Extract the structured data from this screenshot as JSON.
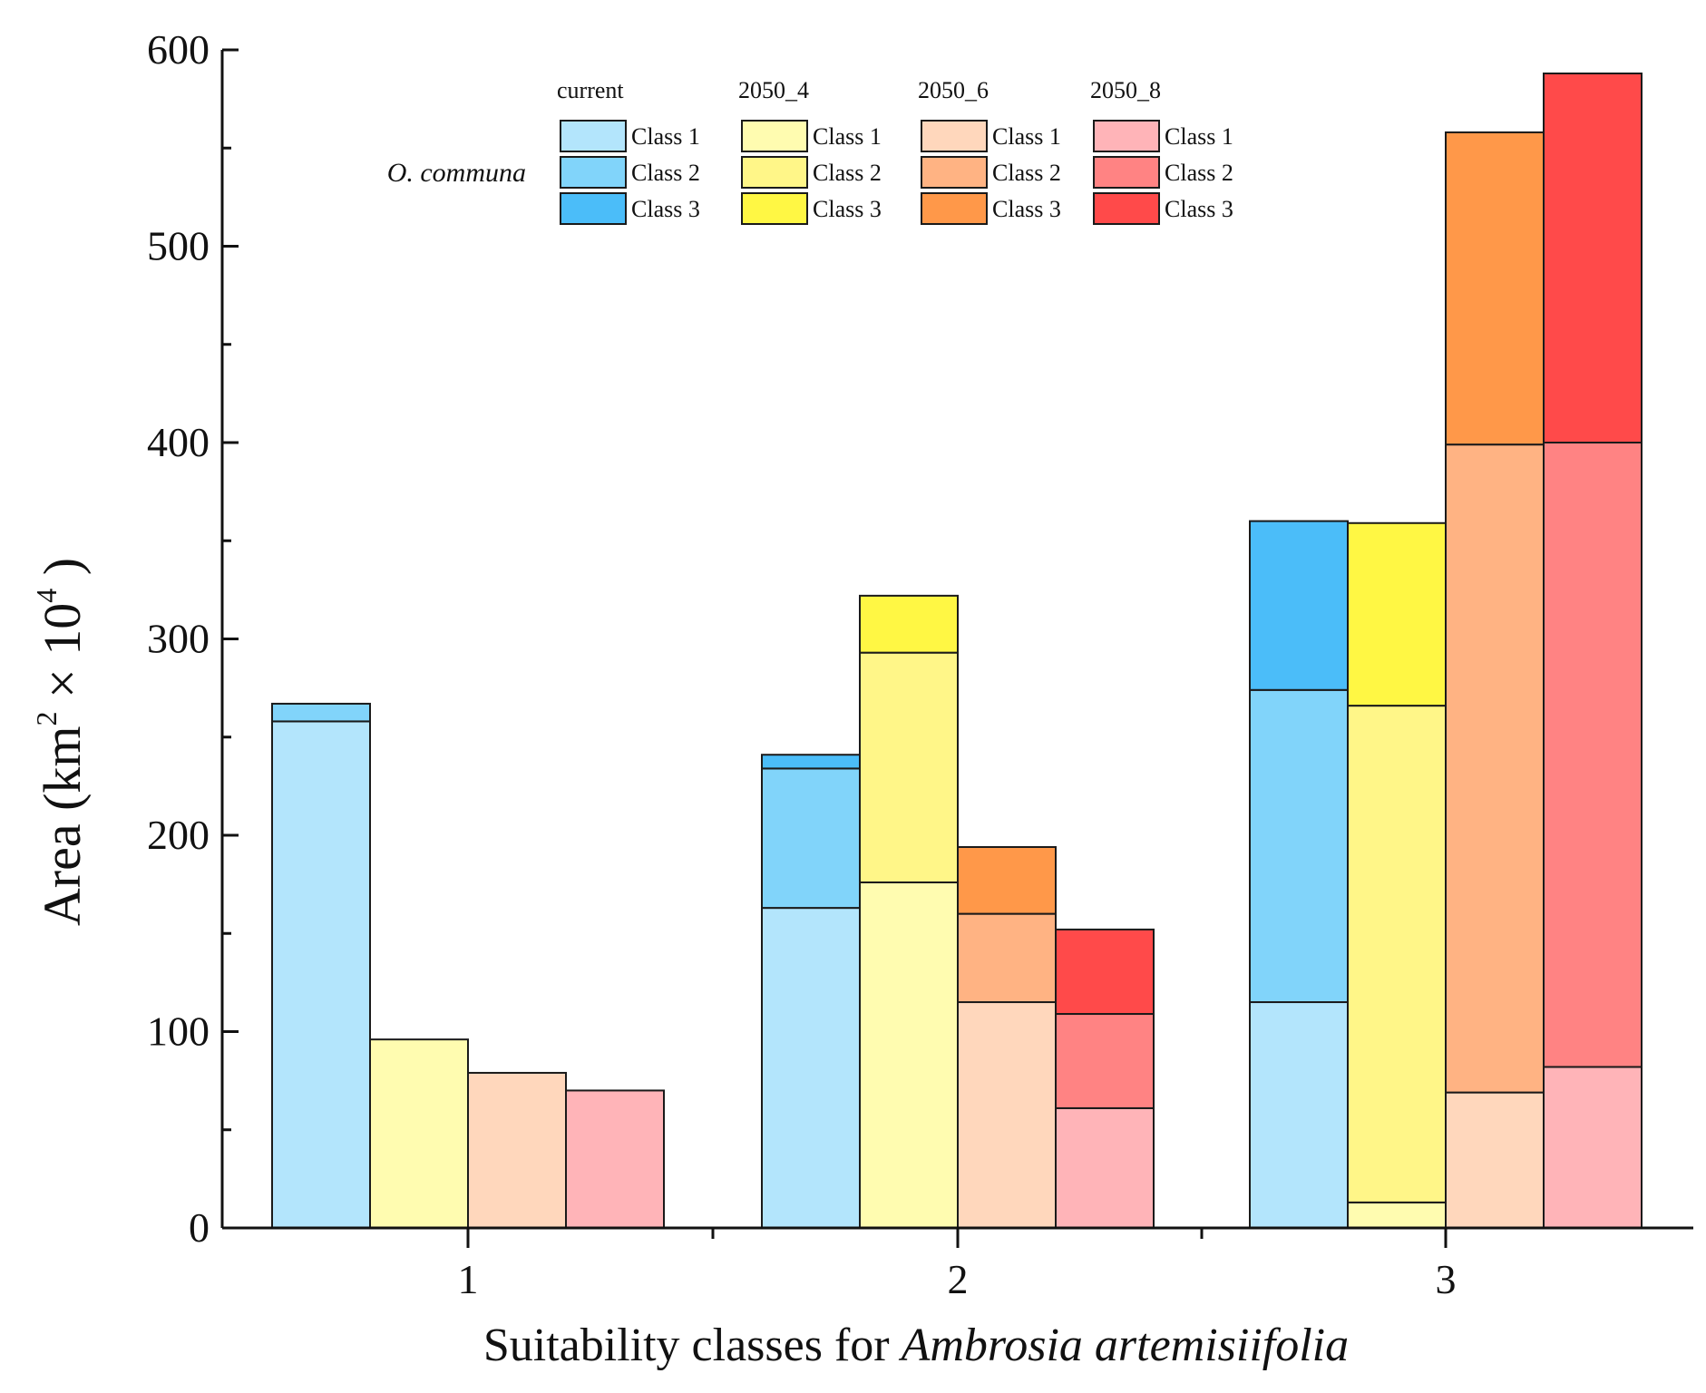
{
  "chart_data": {
    "type": "bar",
    "stacked": true,
    "grouped": true,
    "categories": [
      "1",
      "2",
      "3"
    ],
    "xlabel_main": "Suitability classes for ",
    "xlabel_italic": "Ambrosia artemisiifolia",
    "ylabel_main": "Area (km",
    "ylabel_sup1": "2",
    "ylabel_mid": " × 10",
    "ylabel_sup2": "4",
    "ylabel_end": " )",
    "ylim": [
      0,
      600
    ],
    "yticks": [
      0,
      100,
      200,
      300,
      400,
      500,
      600
    ],
    "grid": false,
    "legend": {
      "placement": "top",
      "species_label": "O. communa",
      "class_labels": [
        "Class 1",
        "Class 2",
        "Class 3"
      ]
    },
    "series": [
      {
        "name": "current",
        "colors": [
          "#b3e5fc",
          "#81d4fa",
          "#4bbdf9"
        ],
        "stacks": [
          [
            258,
            9,
            0
          ],
          [
            163,
            71,
            7
          ],
          [
            115,
            159,
            86
          ]
        ]
      },
      {
        "name": "2050_4",
        "colors": [
          "#fffcb0",
          "#fff688",
          "#fff744"
        ],
        "stacks": [
          [
            96,
            0,
            0
          ],
          [
            176,
            117,
            29
          ],
          [
            13,
            253,
            93
          ]
        ]
      },
      {
        "name": "2050_6",
        "colors": [
          "#ffd7bc",
          "#ffb383",
          "#ff9849"
        ],
        "stacks": [
          [
            79,
            0,
            0
          ],
          [
            115,
            45,
            34
          ],
          [
            69,
            330,
            159
          ]
        ]
      },
      {
        "name": "2050_8",
        "colors": [
          "#ffb4b8",
          "#ff8383",
          "#ff4a4a"
        ],
        "stacks": [
          [
            70,
            0,
            0
          ],
          [
            61,
            48,
            43
          ],
          [
            82,
            318,
            188
          ]
        ]
      }
    ]
  }
}
